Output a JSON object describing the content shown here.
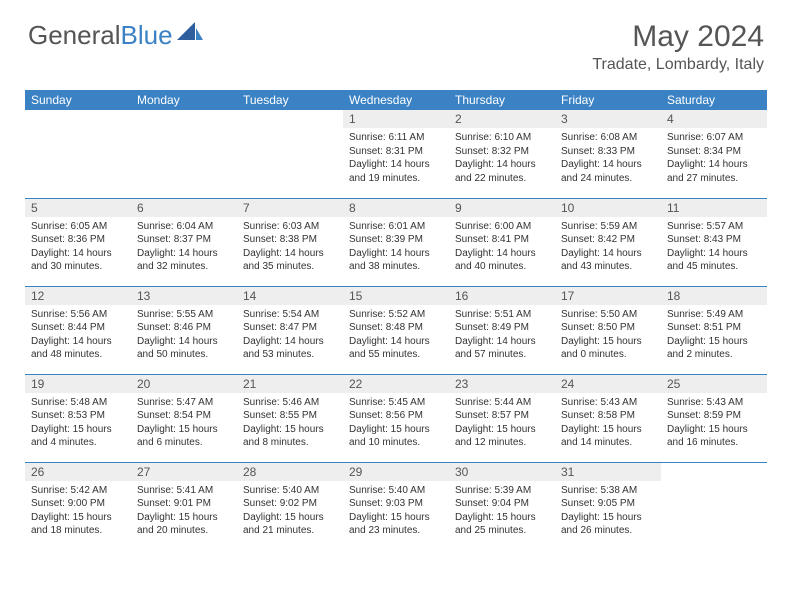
{
  "logo": {
    "word1": "General",
    "word2": "Blue"
  },
  "title": "May 2024",
  "location": "Tradate, Lombardy, Italy",
  "colors": {
    "header_bg": "#3b82c4",
    "divider": "#3b82c4",
    "daynum_bg": "#eeeeee",
    "text_dark": "#333333",
    "text_med": "#555555",
    "white": "#ffffff"
  },
  "typography": {
    "title_fontsize": 30,
    "location_fontsize": 16,
    "header_fontsize": 12,
    "cell_fontsize": 10
  },
  "layout": {
    "columns": 7,
    "rows": 5,
    "first_weekday_index": 3
  },
  "weekdays": [
    "Sunday",
    "Monday",
    "Tuesday",
    "Wednesday",
    "Thursday",
    "Friday",
    "Saturday"
  ],
  "days": [
    {
      "n": 1,
      "sunrise": "6:11 AM",
      "sunset": "8:31 PM",
      "daylight": "14 hours and 19 minutes."
    },
    {
      "n": 2,
      "sunrise": "6:10 AM",
      "sunset": "8:32 PM",
      "daylight": "14 hours and 22 minutes."
    },
    {
      "n": 3,
      "sunrise": "6:08 AM",
      "sunset": "8:33 PM",
      "daylight": "14 hours and 24 minutes."
    },
    {
      "n": 4,
      "sunrise": "6:07 AM",
      "sunset": "8:34 PM",
      "daylight": "14 hours and 27 minutes."
    },
    {
      "n": 5,
      "sunrise": "6:05 AM",
      "sunset": "8:36 PM",
      "daylight": "14 hours and 30 minutes."
    },
    {
      "n": 6,
      "sunrise": "6:04 AM",
      "sunset": "8:37 PM",
      "daylight": "14 hours and 32 minutes."
    },
    {
      "n": 7,
      "sunrise": "6:03 AM",
      "sunset": "8:38 PM",
      "daylight": "14 hours and 35 minutes."
    },
    {
      "n": 8,
      "sunrise": "6:01 AM",
      "sunset": "8:39 PM",
      "daylight": "14 hours and 38 minutes."
    },
    {
      "n": 9,
      "sunrise": "6:00 AM",
      "sunset": "8:41 PM",
      "daylight": "14 hours and 40 minutes."
    },
    {
      "n": 10,
      "sunrise": "5:59 AM",
      "sunset": "8:42 PM",
      "daylight": "14 hours and 43 minutes."
    },
    {
      "n": 11,
      "sunrise": "5:57 AM",
      "sunset": "8:43 PM",
      "daylight": "14 hours and 45 minutes."
    },
    {
      "n": 12,
      "sunrise": "5:56 AM",
      "sunset": "8:44 PM",
      "daylight": "14 hours and 48 minutes."
    },
    {
      "n": 13,
      "sunrise": "5:55 AM",
      "sunset": "8:46 PM",
      "daylight": "14 hours and 50 minutes."
    },
    {
      "n": 14,
      "sunrise": "5:54 AM",
      "sunset": "8:47 PM",
      "daylight": "14 hours and 53 minutes."
    },
    {
      "n": 15,
      "sunrise": "5:52 AM",
      "sunset": "8:48 PM",
      "daylight": "14 hours and 55 minutes."
    },
    {
      "n": 16,
      "sunrise": "5:51 AM",
      "sunset": "8:49 PM",
      "daylight": "14 hours and 57 minutes."
    },
    {
      "n": 17,
      "sunrise": "5:50 AM",
      "sunset": "8:50 PM",
      "daylight": "15 hours and 0 minutes."
    },
    {
      "n": 18,
      "sunrise": "5:49 AM",
      "sunset": "8:51 PM",
      "daylight": "15 hours and 2 minutes."
    },
    {
      "n": 19,
      "sunrise": "5:48 AM",
      "sunset": "8:53 PM",
      "daylight": "15 hours and 4 minutes."
    },
    {
      "n": 20,
      "sunrise": "5:47 AM",
      "sunset": "8:54 PM",
      "daylight": "15 hours and 6 minutes."
    },
    {
      "n": 21,
      "sunrise": "5:46 AM",
      "sunset": "8:55 PM",
      "daylight": "15 hours and 8 minutes."
    },
    {
      "n": 22,
      "sunrise": "5:45 AM",
      "sunset": "8:56 PM",
      "daylight": "15 hours and 10 minutes."
    },
    {
      "n": 23,
      "sunrise": "5:44 AM",
      "sunset": "8:57 PM",
      "daylight": "15 hours and 12 minutes."
    },
    {
      "n": 24,
      "sunrise": "5:43 AM",
      "sunset": "8:58 PM",
      "daylight": "15 hours and 14 minutes."
    },
    {
      "n": 25,
      "sunrise": "5:43 AM",
      "sunset": "8:59 PM",
      "daylight": "15 hours and 16 minutes."
    },
    {
      "n": 26,
      "sunrise": "5:42 AM",
      "sunset": "9:00 PM",
      "daylight": "15 hours and 18 minutes."
    },
    {
      "n": 27,
      "sunrise": "5:41 AM",
      "sunset": "9:01 PM",
      "daylight": "15 hours and 20 minutes."
    },
    {
      "n": 28,
      "sunrise": "5:40 AM",
      "sunset": "9:02 PM",
      "daylight": "15 hours and 21 minutes."
    },
    {
      "n": 29,
      "sunrise": "5:40 AM",
      "sunset": "9:03 PM",
      "daylight": "15 hours and 23 minutes."
    },
    {
      "n": 30,
      "sunrise": "5:39 AM",
      "sunset": "9:04 PM",
      "daylight": "15 hours and 25 minutes."
    },
    {
      "n": 31,
      "sunrise": "5:38 AM",
      "sunset": "9:05 PM",
      "daylight": "15 hours and 26 minutes."
    }
  ],
  "labels": {
    "sunrise": "Sunrise:",
    "sunset": "Sunset:",
    "daylight": "Daylight:"
  }
}
